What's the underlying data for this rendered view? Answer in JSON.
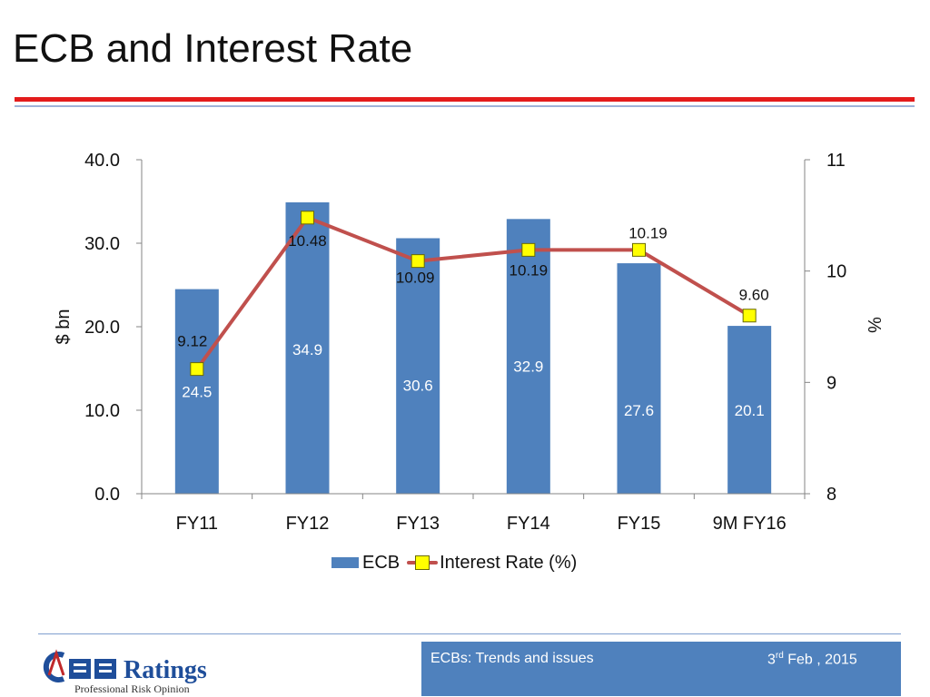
{
  "slide": {
    "title": "ECB and Interest Rate"
  },
  "footer": {
    "left_text": "ECBs: Trends and issues",
    "date_day": "3",
    "date_suffix": "rd",
    "date_rest": " Feb , 2015"
  },
  "logo": {
    "brand_text": "CARE Ratings",
    "tagline": "Professional Risk Opinion"
  },
  "colors": {
    "bar": "#4f81bd",
    "line": "#c0504d",
    "marker_fill": "#ffff00",
    "title_rule": "#e31b1b",
    "footer_box": "#4f81bd"
  },
  "chart_data": {
    "type": "bar",
    "categories": [
      "FY11",
      "FY12",
      "FY13",
      "FY14",
      "FY15",
      "9M FY16"
    ],
    "ylabel": "$ bn",
    "y2label": "%",
    "ylim": [
      0,
      40
    ],
    "y2lim": [
      8,
      11
    ],
    "yticks": [
      "0.0",
      "10.0",
      "20.0",
      "30.0",
      "40.0"
    ],
    "y2ticks": [
      "8",
      "9",
      "10",
      "11"
    ],
    "grid": false,
    "legend_position": "bottom",
    "series": [
      {
        "name": "ECB",
        "type": "bar",
        "axis": "left",
        "values": [
          24.5,
          34.9,
          30.6,
          32.9,
          27.6,
          20.1
        ],
        "labels": [
          "24.5",
          "34.9",
          "30.6",
          "32.9",
          "27.6",
          "20.1"
        ]
      },
      {
        "name": "Interest Rate (%)",
        "type": "line",
        "axis": "right",
        "values": [
          9.12,
          10.48,
          10.09,
          10.19,
          10.19,
          9.6
        ],
        "labels": [
          "9.12",
          "10.48",
          "10.09",
          "10.19",
          "10.19",
          "9.60"
        ]
      }
    ]
  }
}
